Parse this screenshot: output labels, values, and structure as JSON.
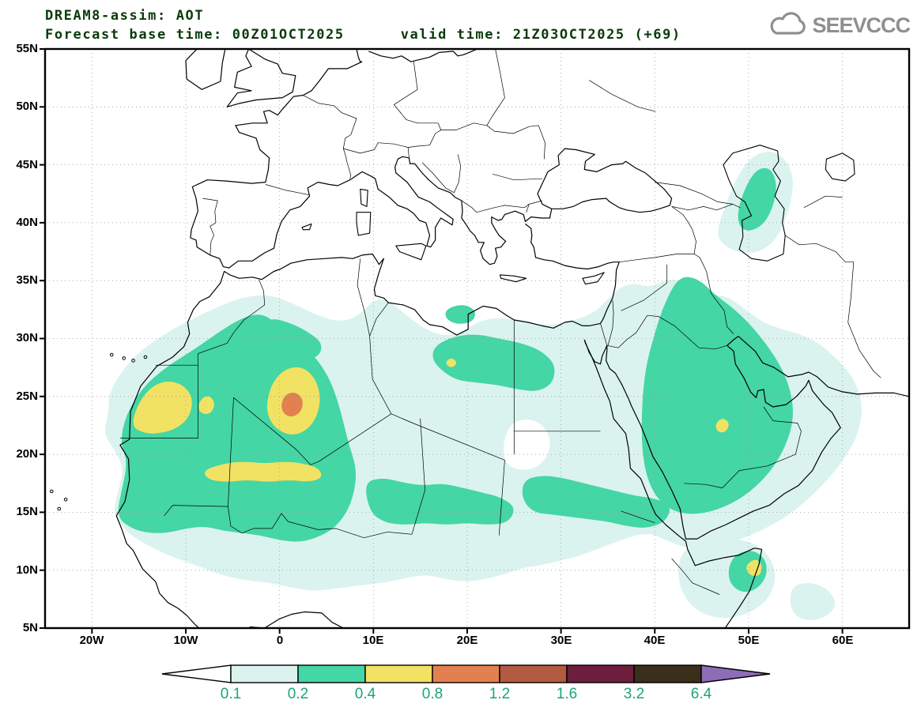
{
  "header": {
    "line1": "DREAM8-assim: AOT",
    "line2": "Forecast base time: 00Z01OCT2025      valid time: 21Z03OCT2025 (+69)"
  },
  "logo": {
    "text": "SEEVCCC"
  },
  "map": {
    "lat_labels": [
      "55N",
      "50N",
      "45N",
      "40N",
      "35N",
      "30N",
      "25N",
      "20N",
      "15N",
      "10N",
      "5N"
    ],
    "lon_labels": [
      "20W",
      "10W",
      "0",
      "10E",
      "20E",
      "30E",
      "40E",
      "50E",
      "60E"
    ]
  },
  "colorbar": {
    "labels": [
      "0.1",
      "0.2",
      "0.4",
      "0.8",
      "1.2",
      "1.6",
      "3.2",
      "6.4"
    ],
    "segment_colors": [
      "#ffffff",
      "#daf3ee",
      "#44d6a5",
      "#f2e263",
      "#e2814f",
      "#b25b40",
      "#6e1d3d",
      "#3a2f1b",
      "#8d6cb8"
    ],
    "label_color": "#1ba47c"
  },
  "field_colors": {
    "aot_01": "#daf3ee",
    "aot_02": "#44d6a5",
    "aot_04": "#f2e263",
    "aot_08": "#e2814f",
    "hole": "#ffffff"
  },
  "style_colors": {
    "title": "#0a3a0a",
    "logo": "#8f8f8f",
    "frame": "#000000",
    "grid": "#999999",
    "coast": "#000000"
  }
}
